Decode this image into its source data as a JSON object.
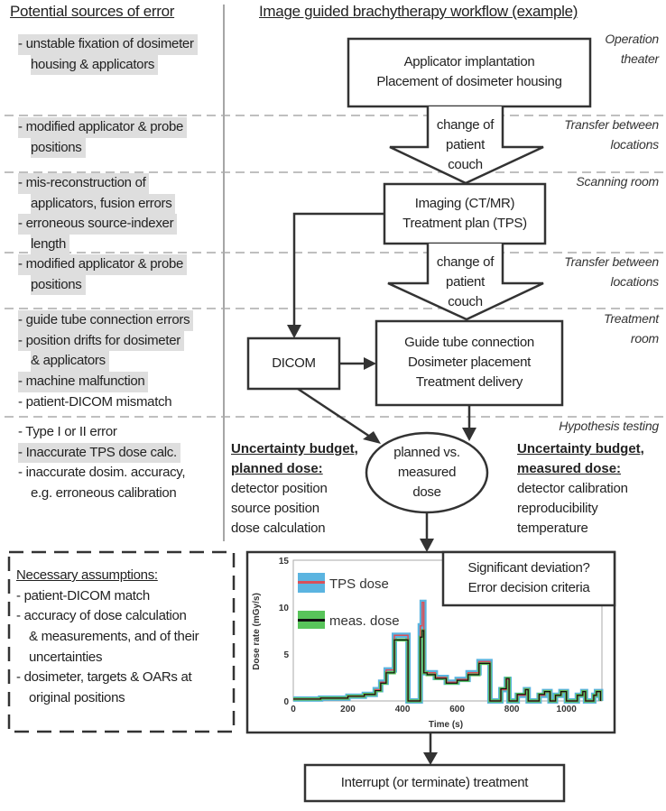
{
  "left_header": "Potential sources of error",
  "right_header": "Image guided brachytherapy workflow (example)",
  "error_sections": [
    {
      "lines": [
        {
          "text": "- unstable fixation of dosimeter",
          "hl": true
        },
        {
          "text": "housing & applicators",
          "hl": true,
          "indent": true
        }
      ]
    },
    {
      "lines": [
        {
          "text": "- modified applicator & probe",
          "hl": true
        },
        {
          "text": "positions",
          "hl": true,
          "indent": true
        }
      ]
    },
    {
      "lines": [
        {
          "text": "- mis-reconstruction of",
          "hl": true
        },
        {
          "text": "applicators, fusion errors",
          "hl": true,
          "indent": true
        },
        {
          "text": "- erroneous source-indexer",
          "hl": true
        },
        {
          "text": "length",
          "hl": true,
          "indent": true
        }
      ]
    },
    {
      "lines": [
        {
          "text": "- modified applicator & probe",
          "hl": true
        },
        {
          "text": "positions",
          "hl": true,
          "indent": true
        }
      ]
    },
    {
      "lines": [
        {
          "text": "- guide tube connection errors",
          "hl": true
        },
        {
          "text": "- position drifts for dosimeter",
          "hl": true
        },
        {
          "text": "& applicators",
          "hl": true,
          "indent": true
        },
        {
          "text": "- machine malfunction",
          "hl": true
        },
        {
          "text": "- patient-DICOM mismatch",
          "hl": false
        }
      ]
    },
    {
      "lines": [
        {
          "text": "- Type I or II error",
          "hl": false
        },
        {
          "text": "- Inaccurate TPS dose calc.",
          "hl": true
        },
        {
          "text": "- inaccurate dosim. accuracy,",
          "hl": false
        },
        {
          "text": "e.g. erroneous calibration",
          "hl": false,
          "indent": true
        }
      ]
    }
  ],
  "locations": {
    "operation": [
      "Operation",
      "theater"
    ],
    "transfer1": [
      "Transfer between",
      "locations"
    ],
    "scanning": [
      "Scanning room"
    ],
    "transfer2": [
      "Transfer between",
      "locations"
    ],
    "treatment": [
      "Treatment",
      "room"
    ],
    "hypothesis": [
      "Hypothesis testing"
    ]
  },
  "boxes": {
    "implantation": [
      "Applicator implantation",
      "Placement of dosimeter housing"
    ],
    "couch1": [
      "change of",
      "patient",
      "couch"
    ],
    "imaging": [
      "Imaging (CT/MR)",
      "Treatment plan (TPS)"
    ],
    "couch2": [
      "change of",
      "patient",
      "couch"
    ],
    "dicom": "DICOM",
    "treatment": [
      "Guide tube connection",
      "Dosimeter placement",
      "Treatment delivery"
    ],
    "comparison": [
      "planned vs.",
      "measured",
      "dose"
    ],
    "deviation": [
      "Significant deviation?",
      "Error decision criteria"
    ],
    "interrupt": "Interrupt (or terminate) treatment"
  },
  "uncertainty_planned": {
    "title": [
      "Uncertainty budget,",
      "planned dose:"
    ],
    "items": [
      "detector position",
      "source position",
      "dose calculation"
    ]
  },
  "uncertainty_measured": {
    "title": [
      "Uncertainty budget,",
      "measured dose:"
    ],
    "items": [
      "detector calibration",
      "reproducibility",
      "temperature"
    ]
  },
  "assumptions": {
    "title": "Necessary assumptions:",
    "lines": [
      "- patient-DICOM match",
      "- accuracy of dose calculation",
      "& measurements, and of their",
      "uncertainties",
      "- dosimeter, targets & OARs at",
      "original positions"
    ]
  },
  "colors": {
    "tps_band": "#5bb4e0",
    "tps_line": "#d9505a",
    "meas_band": "#58c45a",
    "meas_line": "#111111",
    "highlight": "#dedede",
    "dash": "#aaaaaa"
  },
  "chart_data": {
    "type": "line",
    "xlabel": "Time (s)",
    "ylabel": "Dose rate (mGy/s)",
    "xlim": [
      0,
      1130
    ],
    "ylim": [
      0,
      15
    ],
    "xticks": [
      0,
      200,
      400,
      600,
      800,
      1000
    ],
    "yticks": [
      0,
      5,
      10,
      15
    ],
    "legend_position": "top-left",
    "series": [
      {
        "name": "TPS dose",
        "style": "band",
        "x": [
          0,
          100,
          200,
          260,
          300,
          320,
          340,
          370,
          420,
          460,
          465,
          472,
          478,
          490,
          520,
          560,
          600,
          640,
          680,
          720,
          730,
          760,
          780,
          790,
          800,
          820,
          850,
          860,
          880,
          900,
          920,
          940,
          950,
          960,
          980,
          1000,
          1010,
          1040,
          1060,
          1070,
          1100,
          1110,
          1125
        ],
        "y": [
          0.2,
          0.3,
          0.5,
          0.7,
          1.2,
          2.0,
          3.3,
          7.0,
          0,
          0,
          8.0,
          10.5,
          3.0,
          3.0,
          2.5,
          2.0,
          2.3,
          3.0,
          4.2,
          0,
          0,
          1.2,
          2.3,
          0,
          0,
          0.6,
          1.2,
          0,
          0,
          0.6,
          1.0,
          0,
          0,
          0.6,
          1.0,
          0,
          0,
          0.6,
          1.0,
          0,
          0.6,
          1.0,
          0
        ]
      },
      {
        "name": "meas. dose",
        "style": "band",
        "x": [
          0,
          100,
          200,
          260,
          300,
          320,
          340,
          370,
          420,
          460,
          465,
          472,
          478,
          490,
          520,
          560,
          600,
          640,
          680,
          720,
          730,
          760,
          780,
          790,
          800,
          820,
          850,
          860,
          880,
          900,
          920,
          940,
          950,
          960,
          980,
          1000,
          1010,
          1040,
          1060,
          1070,
          1100,
          1110,
          1125
        ],
        "y": [
          0.2,
          0.3,
          0.5,
          0.7,
          1.1,
          1.9,
          3.0,
          6.5,
          0,
          0,
          6.8,
          7.5,
          3.0,
          2.8,
          2.4,
          1.9,
          2.2,
          2.8,
          4.0,
          0,
          0,
          1.3,
          2.4,
          0,
          0,
          0.7,
          1.2,
          0,
          0,
          0.7,
          1.0,
          0,
          0,
          0.6,
          1.0,
          0,
          0,
          0.6,
          1.0,
          0,
          0.6,
          1.0,
          0
        ]
      }
    ]
  }
}
